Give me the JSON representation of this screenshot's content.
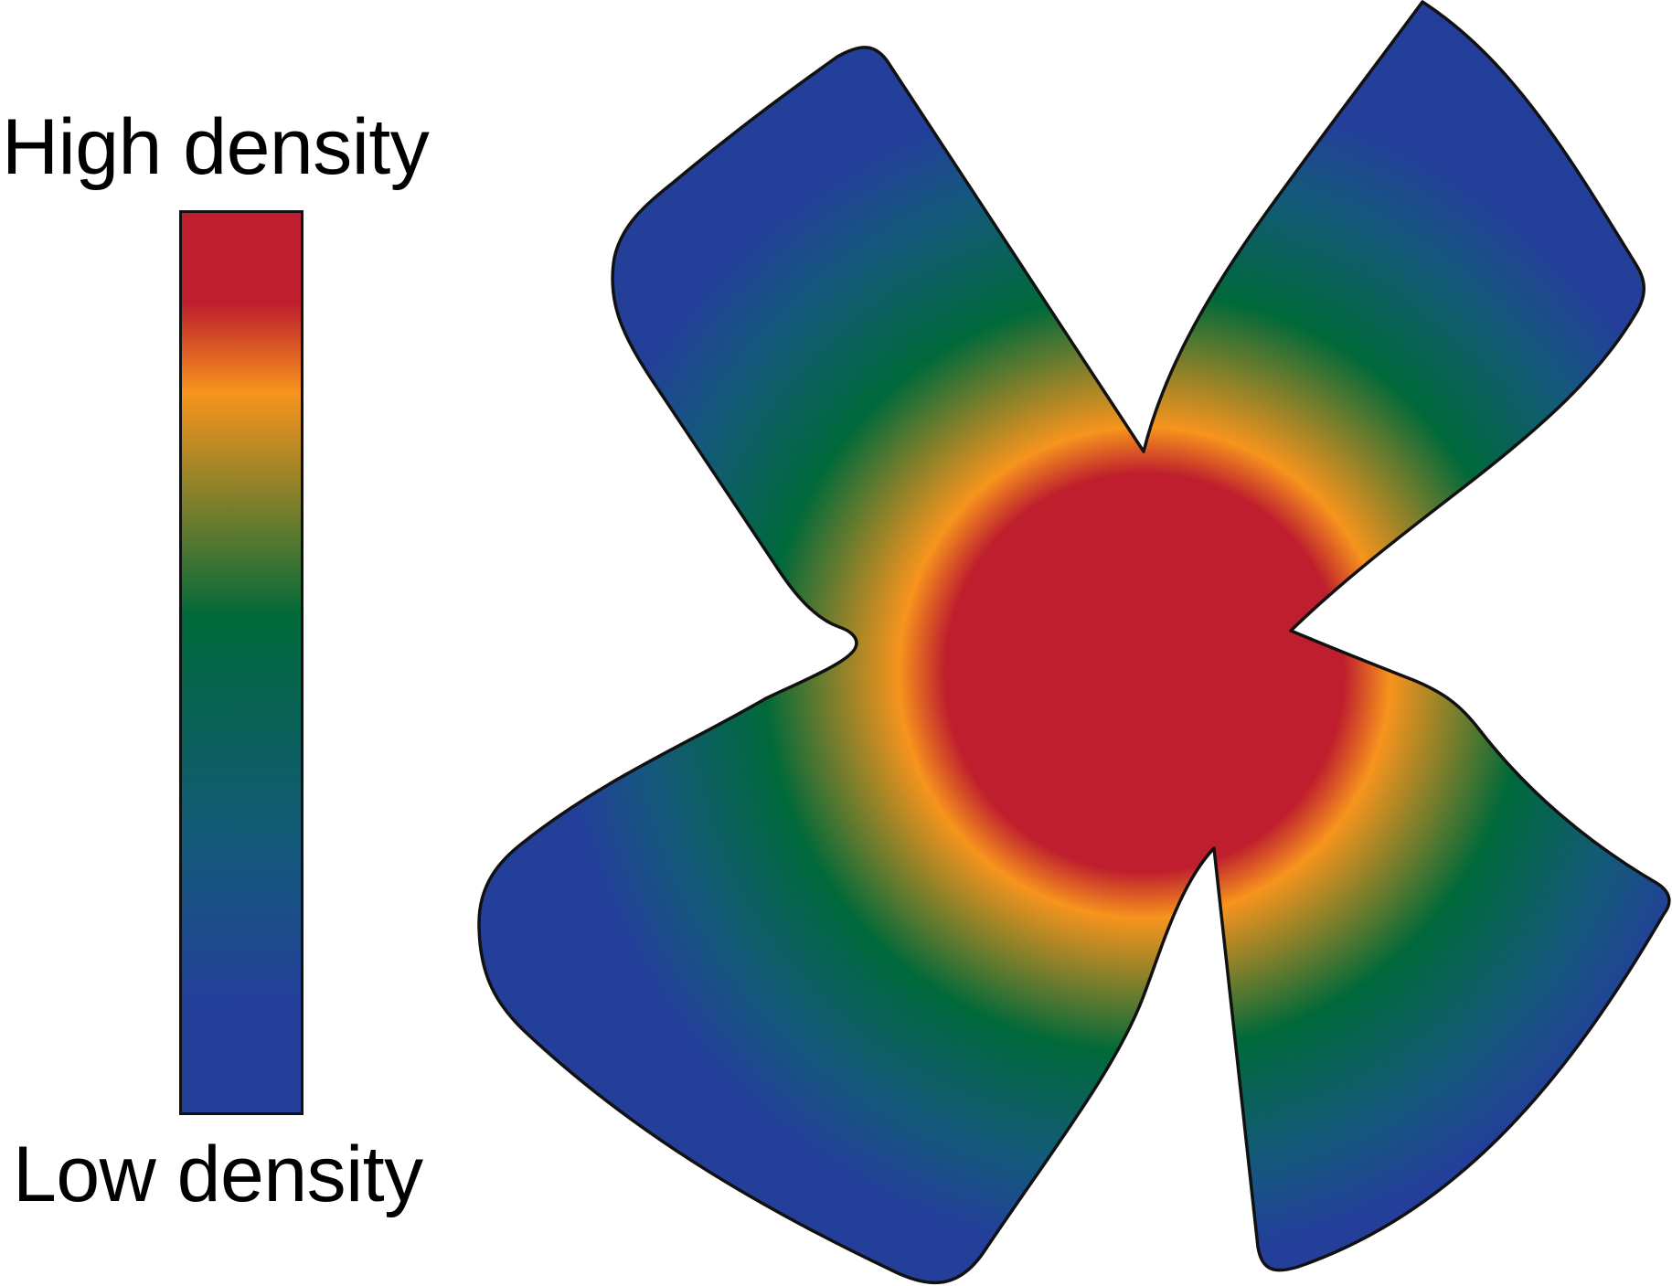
{
  "legend": {
    "high_label": "High density",
    "low_label": "Low density"
  },
  "colors": {
    "high": "#be1e2d",
    "upper_mid": "#f7941d",
    "mid": "#00693a",
    "lower_mid": "#145a7a",
    "low": "#233f9a",
    "outline": "#111111",
    "background": "#ffffff"
  },
  "shape": {
    "description_icon": "four-lobed-blob-icon"
  }
}
